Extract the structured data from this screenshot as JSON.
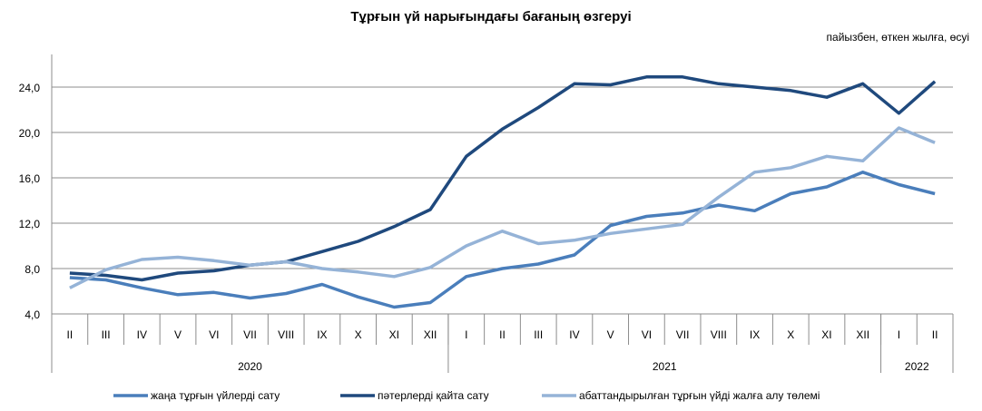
{
  "chart_data": {
    "type": "line",
    "title": "Тұрғын үй нарығындағы  бағаның  өзгеруі",
    "subtitle": "пайызбен, өткен жылға, өсуі",
    "xlabel": "",
    "ylabel": "",
    "ylim": [
      4,
      28
    ],
    "yticks": [
      "4,0",
      "8,0",
      "12,0",
      "16,0",
      "20,0",
      "24,0"
    ],
    "ytick_values": [
      4,
      8,
      12,
      16,
      20,
      24
    ],
    "grid": true,
    "legend_position": "bottom",
    "categories": [
      "II",
      "III",
      "IV",
      "V",
      "VI",
      "VII",
      "VIII",
      "IX",
      "X",
      "XI",
      "XII",
      "I",
      "II",
      "III",
      "IV",
      "V",
      "VI",
      "VII",
      "VIII",
      "IX",
      "X",
      "XI",
      "XII",
      "I",
      "II"
    ],
    "groups": [
      {
        "label": "2020",
        "count": 11
      },
      {
        "label": "2021",
        "count": 12
      },
      {
        "label": "2022",
        "count": 2
      }
    ],
    "series": [
      {
        "name": "жаңа тұрғын үйлерді сату",
        "color": "#4a7ebb",
        "values": [
          7.2,
          7.0,
          6.3,
          5.7,
          5.9,
          5.4,
          5.8,
          6.6,
          5.5,
          4.6,
          5.0,
          7.3,
          8.0,
          8.4,
          9.2,
          11.8,
          12.6,
          12.9,
          13.6,
          13.1,
          14.6,
          15.2,
          16.5,
          15.4,
          14.6
        ]
      },
      {
        "name": "пәтерлерді қайта сату",
        "color": "#1f497d",
        "values": [
          7.6,
          7.4,
          7.0,
          7.6,
          7.8,
          8.3,
          8.6,
          9.5,
          10.4,
          11.7,
          13.2,
          17.9,
          20.3,
          22.2,
          24.3,
          24.2,
          24.9,
          24.9,
          24.3,
          24.0,
          23.7,
          23.1,
          24.3,
          21.7,
          24.5
        ]
      },
      {
        "name": "абаттандырылған тұрғын  үйді жалға алу төлемі",
        "color": "#95b3d7",
        "values": [
          6.3,
          7.9,
          8.8,
          9.0,
          8.7,
          8.3,
          8.6,
          8.0,
          7.7,
          7.3,
          8.1,
          10.0,
          11.3,
          10.2,
          10.5,
          11.1,
          11.5,
          11.9,
          14.3,
          16.5,
          16.9,
          17.9,
          17.5,
          20.4,
          19.1
        ]
      }
    ]
  }
}
